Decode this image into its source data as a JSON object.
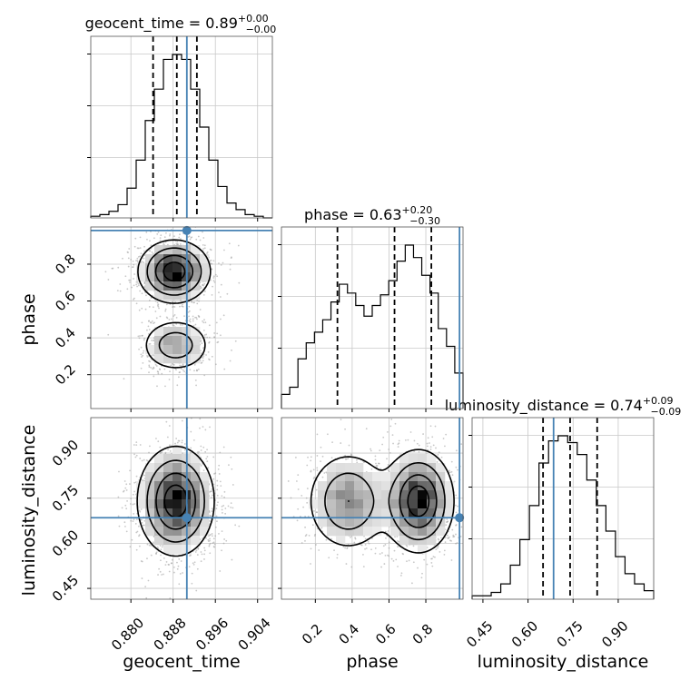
{
  "chart_data": {
    "type": "corner",
    "truth_color": "#4682b4",
    "parameters": [
      "geocent_time",
      "phase",
      "luminosity_distance"
    ],
    "titles": [
      {
        "param": "geocent_time",
        "text": "geocent_time = 0.89",
        "sup": "+0.00",
        "sub": "−0.00"
      },
      {
        "param": "phase",
        "text": "phase = 0.63",
        "sup": "+0.20",
        "sub": "−0.30"
      },
      {
        "param": "luminosity_distance",
        "text": "luminosity_distance = 0.74",
        "sup": "+0.09",
        "sub": "−0.09"
      }
    ],
    "axis_labels": {
      "x": [
        "geocent_time",
        "phase",
        "luminosity_distance"
      ],
      "y": [
        "phase",
        "luminosity_distance"
      ]
    },
    "ranges": {
      "geocent_time": [
        0.8724,
        0.9068
      ],
      "phase": [
        0.016,
        1.002
      ],
      "luminosity_distance": [
        0.414,
        1.018
      ]
    },
    "ticks": {
      "geocent_time": [
        "0.880",
        "0.888",
        "0.896",
        "0.904"
      ],
      "phase_x": [
        "0.2",
        "0.4",
        "0.6",
        "0.8"
      ],
      "phase_y": [
        "0.2",
        "0.4",
        "0.6",
        "0.8"
      ],
      "luminosity_distance_x": [
        "0.45",
        "0.60",
        "0.75",
        "0.90"
      ],
      "luminosity_distance_y": [
        "0.45",
        "0.60",
        "0.75",
        "0.90"
      ]
    },
    "truths": {
      "geocent_time": 0.8906,
      "phase": 0.983,
      "luminosity_distance": 0.685
    },
    "quantiles": {
      "geocent_time": [
        0.8842,
        0.8887,
        0.8925
      ],
      "phase": [
        0.32,
        0.63,
        0.83
      ],
      "luminosity_distance": [
        0.65,
        0.74,
        0.83
      ]
    },
    "histograms": {
      "geocent_time": {
        "bins": [
          0.8724,
          0.9068
        ],
        "counts": [
          1,
          2,
          4,
          8,
          18,
          35,
          59,
          78,
          96,
          99,
          96,
          78,
          55,
          35,
          19,
          9,
          5,
          2,
          1,
          0
        ]
      },
      "phase": {
        "bins": [
          0.016,
          1.002
        ],
        "counts": [
          8,
          12,
          28,
          37,
          43,
          50,
          60,
          70,
          65,
          58,
          52,
          58,
          64,
          72,
          83,
          92,
          85,
          75,
          65,
          45,
          35,
          20
        ]
      },
      "luminosity_distance": {
        "bins": [
          0.414,
          1.018
        ],
        "counts": [
          2,
          2,
          4,
          9,
          20,
          35,
          55,
          80,
          93,
          96,
          92,
          85,
          70,
          55,
          40,
          25,
          15,
          9,
          5
        ]
      }
    },
    "pairs": [
      {
        "x": "geocent_time",
        "y": "phase",
        "modes": [
          {
            "x": 0.8882,
            "y": 0.76,
            "sx": 0.0032,
            "sy": 0.08,
            "w": 1.0
          },
          {
            "x": 0.8885,
            "y": 0.36,
            "sx": 0.0032,
            "sy": 0.07,
            "w": 0.45
          }
        ]
      },
      {
        "x": "geocent_time",
        "y": "luminosity_distance",
        "modes": [
          {
            "x": 0.8885,
            "y": 0.74,
            "sx": 0.0034,
            "sy": 0.085,
            "w": 1.0
          }
        ]
      },
      {
        "x": "phase",
        "y": "luminosity_distance",
        "modes": [
          {
            "x": 0.76,
            "y": 0.74,
            "sx": 0.09,
            "sy": 0.08,
            "w": 1.0
          },
          {
            "x": 0.38,
            "y": 0.74,
            "sx": 0.11,
            "sy": 0.08,
            "w": 0.55
          }
        ]
      }
    ]
  }
}
